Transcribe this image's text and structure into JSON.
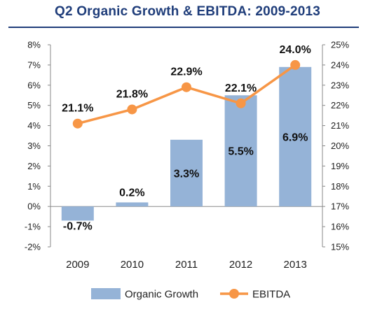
{
  "colors": {
    "bar": "#95B3D7",
    "line": "#F79646",
    "title": "#1F3D7A",
    "axis": "#888888"
  },
  "chart_data": {
    "type": "bar",
    "title": "Q2 Organic Growth & EBITDA: 2009-2013",
    "categories": [
      "2009",
      "2010",
      "2011",
      "2012",
      "2013"
    ],
    "series": [
      {
        "name": "Organic Growth",
        "type": "bar",
        "axis": "left",
        "values": [
          -0.7,
          0.2,
          3.3,
          5.5,
          6.9
        ],
        "labels": [
          "-0.7%",
          "0.2%",
          "3.3%",
          "5.5%",
          "6.9%"
        ]
      },
      {
        "name": "EBITDA",
        "type": "line",
        "axis": "right",
        "values": [
          21.1,
          21.8,
          22.9,
          22.1,
          24.0
        ],
        "labels": [
          "21.1%",
          "21.8%",
          "22.9%",
          "22.1%",
          "24.0%"
        ]
      }
    ],
    "y_left": {
      "ylim": [
        -2,
        8
      ],
      "ticks": [
        "-2%",
        "-1%",
        "0%",
        "1%",
        "2%",
        "3%",
        "4%",
        "5%",
        "6%",
        "7%",
        "8%"
      ]
    },
    "y_right": {
      "ylim": [
        15,
        25
      ],
      "ticks": [
        "15%",
        "16%",
        "17%",
        "18%",
        "19%",
        "20%",
        "21%",
        "22%",
        "23%",
        "24%",
        "25%"
      ]
    },
    "grid": false,
    "legend": "bottom"
  }
}
